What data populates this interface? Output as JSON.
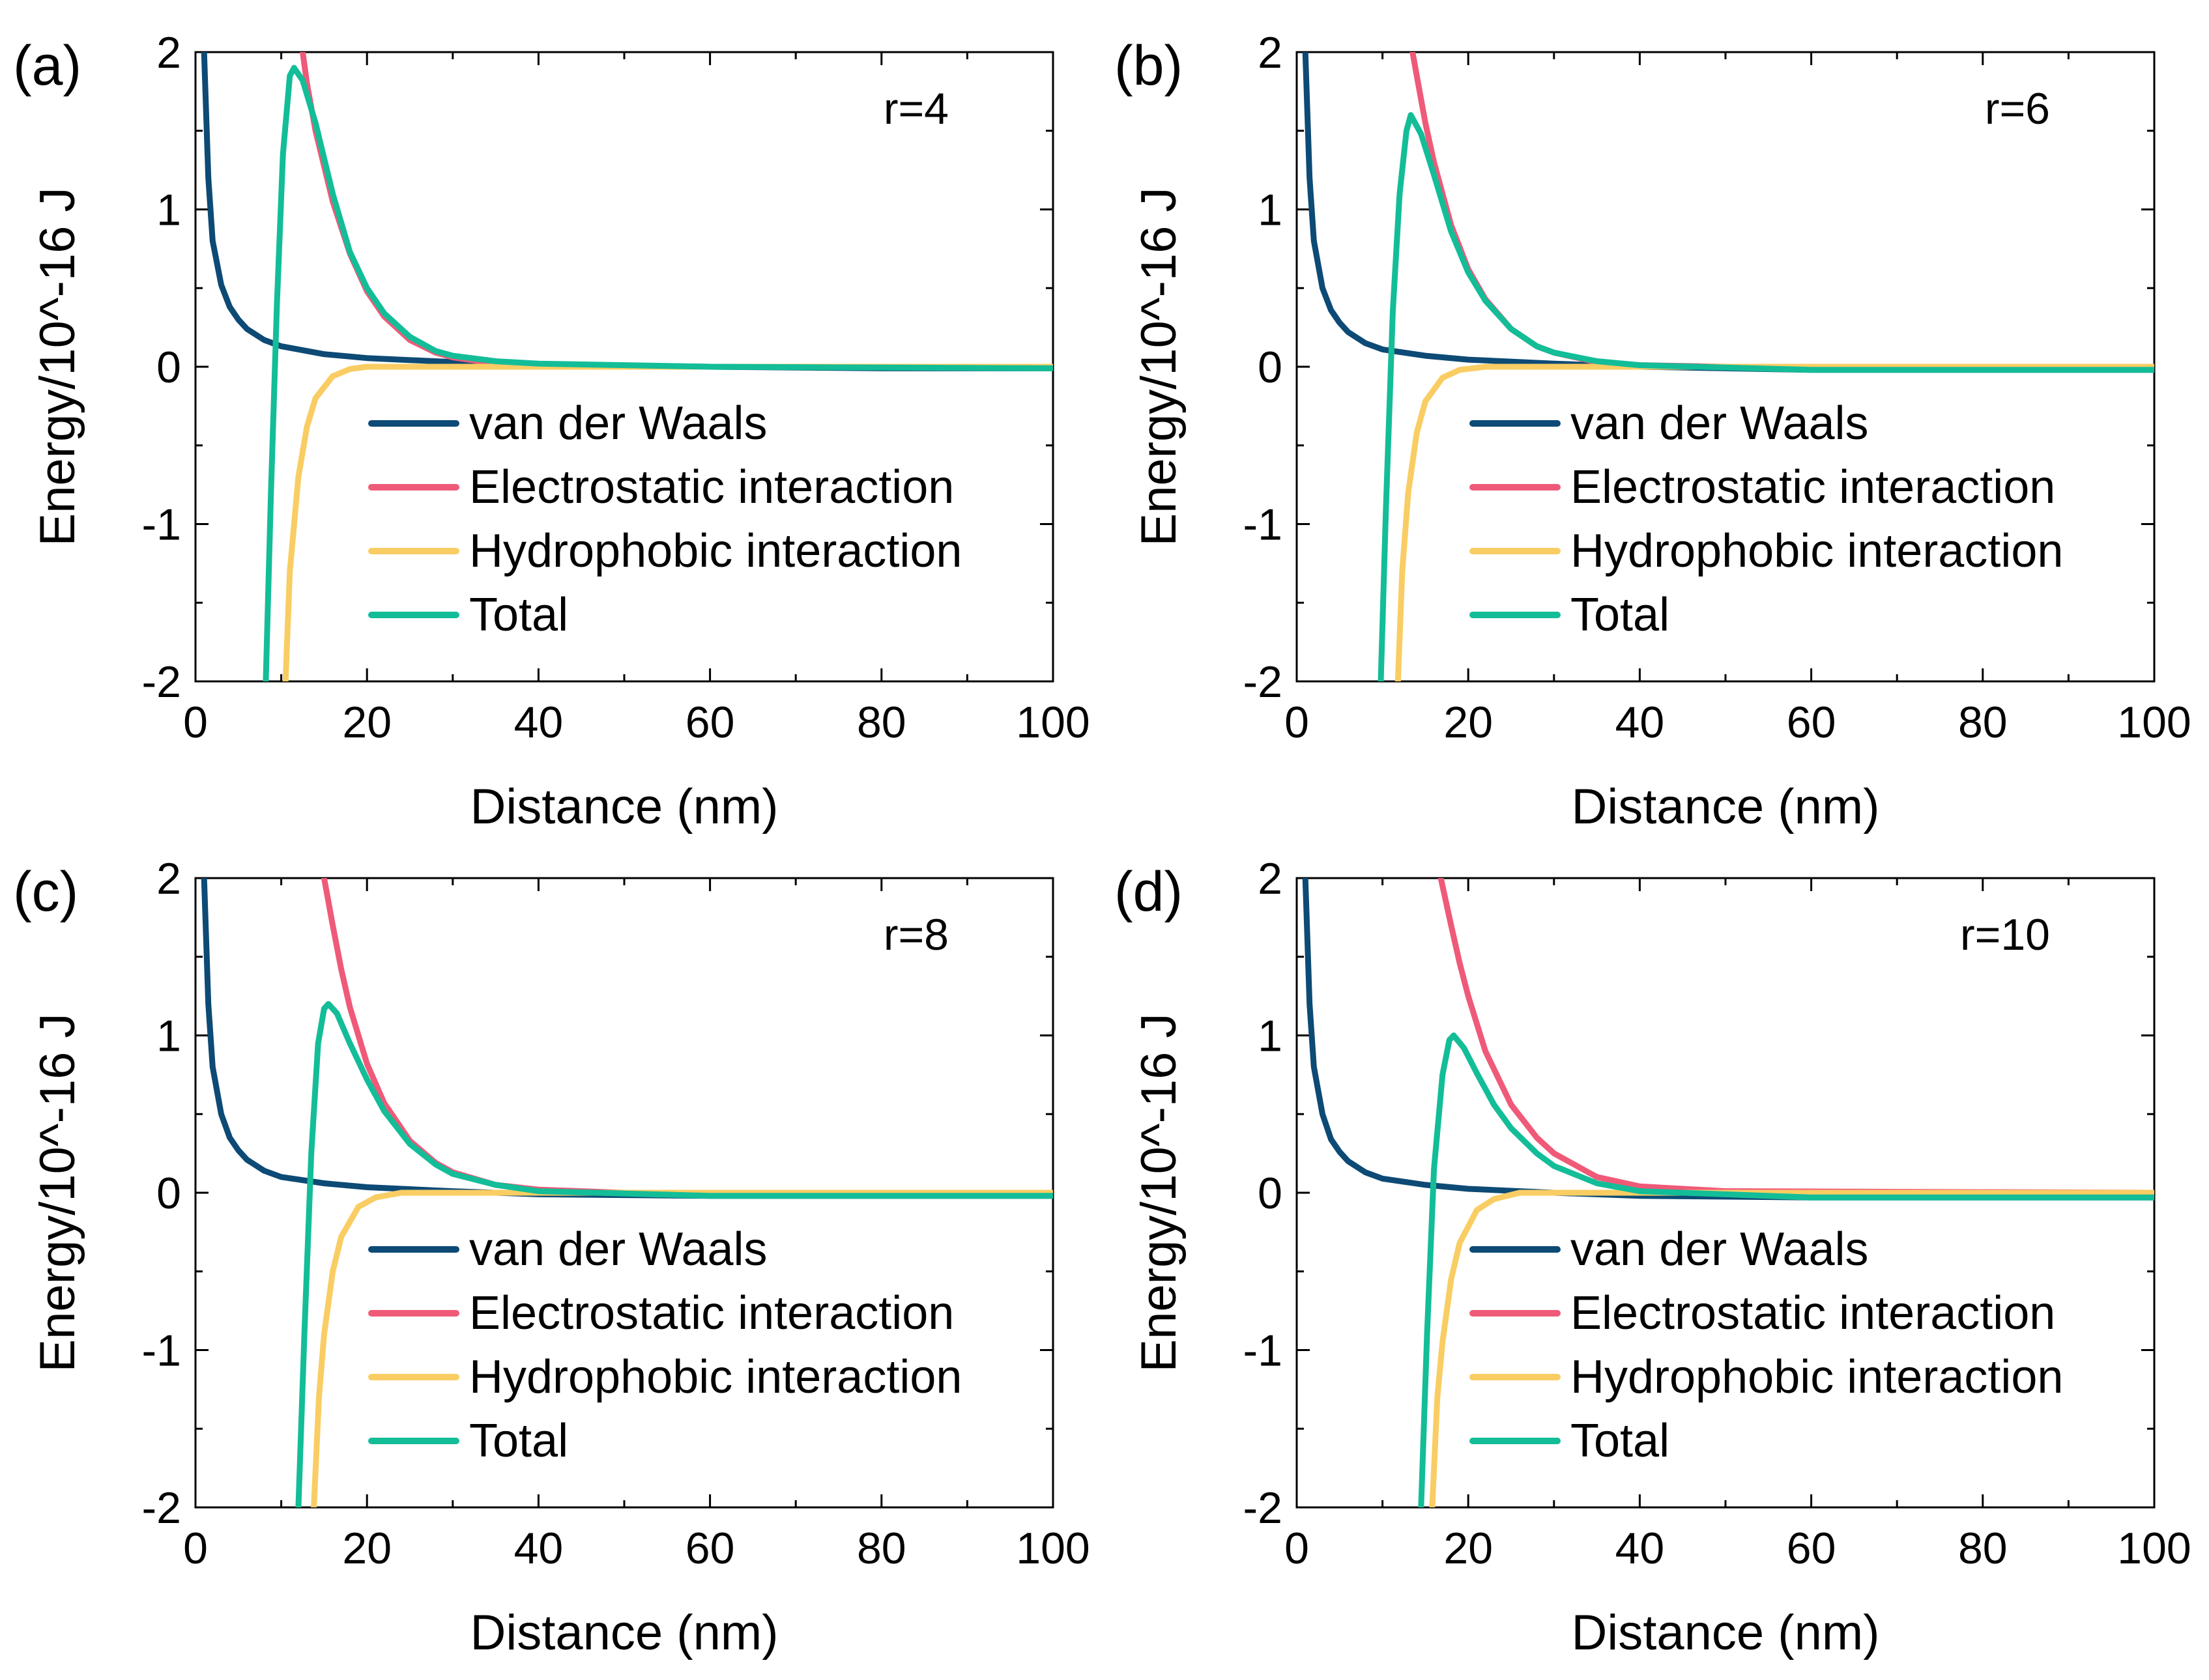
{
  "chart_data": [
    {
      "panel": "(a)",
      "type": "line",
      "annotation": "r=4",
      "xlabel": "Distance (nm)",
      "ylabel": "Energy/10^-16 J",
      "xlim": [
        0,
        100
      ],
      "ylim": [
        -2,
        2
      ],
      "xticks": [
        "0",
        "20",
        "40",
        "60",
        "80",
        "100"
      ],
      "yticks": [
        "-2",
        "-1",
        "0",
        "1",
        "2"
      ],
      "legend_position": "center-right",
      "series": [
        {
          "name": "van der Waals",
          "color": "#0d4a75",
          "points": [
            [
              1,
              2.0
            ],
            [
              1.5,
              1.2
            ],
            [
              2,
              0.8
            ],
            [
              3,
              0.52
            ],
            [
              4,
              0.38
            ],
            [
              5,
              0.3
            ],
            [
              6,
              0.24
            ],
            [
              8,
              0.17
            ],
            [
              10,
              0.13
            ],
            [
              15,
              0.08
            ],
            [
              20,
              0.055
            ],
            [
              30,
              0.03
            ],
            [
              40,
              0.015
            ],
            [
              60,
              0.0
            ],
            [
              80,
              -0.01
            ],
            [
              100,
              -0.01
            ]
          ]
        },
        {
          "name": "Electrostatic interaction",
          "color": "#ef5a78",
          "points": [
            [
              12.5,
              2.0
            ],
            [
              13,
              1.8
            ],
            [
              14,
              1.5
            ],
            [
              16,
              1.05
            ],
            [
              18,
              0.72
            ],
            [
              20,
              0.48
            ],
            [
              22,
              0.32
            ],
            [
              25,
              0.17
            ],
            [
              28,
              0.09
            ],
            [
              30,
              0.06
            ],
            [
              35,
              0.02
            ],
            [
              40,
              0.01
            ],
            [
              50,
              0.0
            ],
            [
              100,
              0.0
            ]
          ]
        },
        {
          "name": "Hydrophobic interaction",
          "color": "#f9cd63",
          "points": [
            [
              10.5,
              -2.0
            ],
            [
              11,
              -1.3
            ],
            [
              12,
              -0.7
            ],
            [
              13,
              -0.38
            ],
            [
              14,
              -0.2
            ],
            [
              16,
              -0.06
            ],
            [
              18,
              -0.015
            ],
            [
              20,
              0.0
            ],
            [
              100,
              0.0
            ]
          ]
        },
        {
          "name": "Total",
          "color": "#13bd98",
          "points": [
            [
              8.2,
              -2.0
            ],
            [
              8.8,
              -0.8
            ],
            [
              9.5,
              0.4
            ],
            [
              10.2,
              1.35
            ],
            [
              11,
              1.85
            ],
            [
              11.5,
              1.9
            ],
            [
              12.5,
              1.82
            ],
            [
              14,
              1.55
            ],
            [
              16,
              1.1
            ],
            [
              18,
              0.73
            ],
            [
              20,
              0.5
            ],
            [
              22,
              0.34
            ],
            [
              25,
              0.19
            ],
            [
              28,
              0.1
            ],
            [
              30,
              0.07
            ],
            [
              35,
              0.035
            ],
            [
              40,
              0.02
            ],
            [
              60,
              0.0
            ],
            [
              100,
              -0.01
            ]
          ]
        }
      ]
    },
    {
      "panel": "(b)",
      "type": "line",
      "annotation": "r=6",
      "xlabel": "Distance (nm)",
      "ylabel": "Energy/10^-16 J",
      "xlim": [
        0,
        100
      ],
      "ylim": [
        -2,
        2
      ],
      "xticks": [
        "0",
        "20",
        "40",
        "60",
        "80",
        "100"
      ],
      "yticks": [
        "-2",
        "-1",
        "0",
        "1",
        "2"
      ],
      "legend_position": "center-right",
      "series": [
        {
          "name": "van der Waals",
          "color": "#0d4a75",
          "points": [
            [
              1,
              2.0
            ],
            [
              1.5,
              1.2
            ],
            [
              2,
              0.8
            ],
            [
              3,
              0.5
            ],
            [
              4,
              0.36
            ],
            [
              5,
              0.28
            ],
            [
              6,
              0.22
            ],
            [
              8,
              0.15
            ],
            [
              10,
              0.11
            ],
            [
              15,
              0.07
            ],
            [
              20,
              0.045
            ],
            [
              30,
              0.02
            ],
            [
              40,
              0.0
            ],
            [
              60,
              -0.02
            ],
            [
              80,
              -0.02
            ],
            [
              100,
              -0.02
            ]
          ]
        },
        {
          "name": "Electrostatic interaction",
          "color": "#ef5a78",
          "points": [
            [
              13.5,
              2.0
            ],
            [
              14,
              1.85
            ],
            [
              15,
              1.55
            ],
            [
              16,
              1.3
            ],
            [
              18,
              0.9
            ],
            [
              20,
              0.62
            ],
            [
              22,
              0.43
            ],
            [
              25,
              0.24
            ],
            [
              28,
              0.13
            ],
            [
              30,
              0.09
            ],
            [
              35,
              0.03
            ],
            [
              40,
              0.01
            ],
            [
              50,
              0.0
            ],
            [
              100,
              0.0
            ]
          ]
        },
        {
          "name": "Hydrophobic interaction",
          "color": "#f9cd63",
          "points": [
            [
              11.8,
              -2.0
            ],
            [
              12.3,
              -1.3
            ],
            [
              13,
              -0.8
            ],
            [
              14,
              -0.42
            ],
            [
              15,
              -0.22
            ],
            [
              17,
              -0.07
            ],
            [
              19,
              -0.02
            ],
            [
              22,
              0.0
            ],
            [
              100,
              0.0
            ]
          ]
        },
        {
          "name": "Total",
          "color": "#13bd98",
          "points": [
            [
              9.8,
              -2.0
            ],
            [
              10.4,
              -0.9
            ],
            [
              11.2,
              0.35
            ],
            [
              12,
              1.1
            ],
            [
              12.8,
              1.5
            ],
            [
              13.3,
              1.6
            ],
            [
              14.5,
              1.48
            ],
            [
              16,
              1.22
            ],
            [
              18,
              0.86
            ],
            [
              20,
              0.6
            ],
            [
              22,
              0.42
            ],
            [
              25,
              0.24
            ],
            [
              28,
              0.13
            ],
            [
              30,
              0.09
            ],
            [
              35,
              0.035
            ],
            [
              40,
              0.01
            ],
            [
              60,
              -0.02
            ],
            [
              100,
              -0.02
            ]
          ]
        }
      ]
    },
    {
      "panel": "(c)",
      "type": "line",
      "annotation": "r=8",
      "xlabel": "Distance (nm)",
      "ylabel": "Energy/10^-16 J",
      "xlim": [
        0,
        100
      ],
      "ylim": [
        -2,
        2
      ],
      "xticks": [
        "0",
        "20",
        "40",
        "60",
        "80",
        "100"
      ],
      "yticks": [
        "-2",
        "-1",
        "0",
        "1",
        "2"
      ],
      "legend_position": "center-right",
      "series": [
        {
          "name": "van der Waals",
          "color": "#0d4a75",
          "points": [
            [
              1,
              2.0
            ],
            [
              1.5,
              1.2
            ],
            [
              2,
              0.8
            ],
            [
              3,
              0.5
            ],
            [
              4,
              0.35
            ],
            [
              5,
              0.27
            ],
            [
              6,
              0.21
            ],
            [
              8,
              0.14
            ],
            [
              10,
              0.1
            ],
            [
              15,
              0.06
            ],
            [
              20,
              0.035
            ],
            [
              30,
              0.01
            ],
            [
              40,
              -0.01
            ],
            [
              60,
              -0.02
            ],
            [
              80,
              -0.02
            ],
            [
              100,
              -0.02
            ]
          ]
        },
        {
          "name": "Electrostatic interaction",
          "color": "#ef5a78",
          "points": [
            [
              15,
              2.0
            ],
            [
              16,
              1.7
            ],
            [
              17,
              1.42
            ],
            [
              18,
              1.18
            ],
            [
              20,
              0.82
            ],
            [
              22,
              0.57
            ],
            [
              25,
              0.33
            ],
            [
              28,
              0.19
            ],
            [
              30,
              0.13
            ],
            [
              35,
              0.05
            ],
            [
              40,
              0.02
            ],
            [
              50,
              0.0
            ],
            [
              100,
              0.0
            ]
          ]
        },
        {
          "name": "Hydrophobic interaction",
          "color": "#f9cd63",
          "points": [
            [
              13.8,
              -2.0
            ],
            [
              14.4,
              -1.3
            ],
            [
              15,
              -0.9
            ],
            [
              16,
              -0.5
            ],
            [
              17,
              -0.28
            ],
            [
              19,
              -0.09
            ],
            [
              21,
              -0.03
            ],
            [
              24,
              0.0
            ],
            [
              100,
              0.0
            ]
          ]
        },
        {
          "name": "Total",
          "color": "#13bd98",
          "points": [
            [
              12,
              -2.0
            ],
            [
              12.7,
              -0.9
            ],
            [
              13.5,
              0.25
            ],
            [
              14.3,
              0.95
            ],
            [
              15,
              1.17
            ],
            [
              15.5,
              1.2
            ],
            [
              16.5,
              1.14
            ],
            [
              18,
              0.95
            ],
            [
              20,
              0.72
            ],
            [
              22,
              0.52
            ],
            [
              25,
              0.31
            ],
            [
              28,
              0.18
            ],
            [
              30,
              0.12
            ],
            [
              35,
              0.05
            ],
            [
              40,
              0.01
            ],
            [
              60,
              -0.02
            ],
            [
              100,
              -0.02
            ]
          ]
        }
      ]
    },
    {
      "panel": "(d)",
      "type": "line",
      "annotation": "r=10",
      "xlabel": "Distance (nm)",
      "ylabel": "Energy/10^-16 J",
      "xlim": [
        0,
        100
      ],
      "ylim": [
        -2,
        2
      ],
      "xticks": [
        "0",
        "20",
        "40",
        "60",
        "80",
        "100"
      ],
      "yticks": [
        "-2",
        "-1",
        "0",
        "1",
        "2"
      ],
      "legend_position": "center-right",
      "series": [
        {
          "name": "van der Waals",
          "color": "#0d4a75",
          "points": [
            [
              1,
              2.0
            ],
            [
              1.5,
              1.2
            ],
            [
              2,
              0.8
            ],
            [
              3,
              0.5
            ],
            [
              4,
              0.34
            ],
            [
              5,
              0.26
            ],
            [
              6,
              0.2
            ],
            [
              8,
              0.13
            ],
            [
              10,
              0.09
            ],
            [
              15,
              0.05
            ],
            [
              20,
              0.025
            ],
            [
              30,
              0.0
            ],
            [
              40,
              -0.02
            ],
            [
              60,
              -0.03
            ],
            [
              80,
              -0.03
            ],
            [
              100,
              -0.03
            ]
          ]
        },
        {
          "name": "Electrostatic interaction",
          "color": "#ef5a78",
          "points": [
            [
              16.8,
              2.0
            ],
            [
              18,
              1.7
            ],
            [
              19,
              1.46
            ],
            [
              20,
              1.25
            ],
            [
              22,
              0.9
            ],
            [
              25,
              0.56
            ],
            [
              28,
              0.35
            ],
            [
              30,
              0.25
            ],
            [
              35,
              0.1
            ],
            [
              40,
              0.04
            ],
            [
              50,
              0.01
            ],
            [
              100,
              0.0
            ]
          ]
        },
        {
          "name": "Hydrophobic interaction",
          "color": "#f9cd63",
          "points": [
            [
              15.8,
              -2.0
            ],
            [
              16.4,
              -1.3
            ],
            [
              17,
              -0.95
            ],
            [
              18,
              -0.55
            ],
            [
              19,
              -0.32
            ],
            [
              21,
              -0.11
            ],
            [
              23,
              -0.04
            ],
            [
              26,
              0.0
            ],
            [
              100,
              0.0
            ]
          ]
        },
        {
          "name": "Total",
          "color": "#13bd98",
          "points": [
            [
              14.5,
              -2.0
            ],
            [
              15.2,
              -0.9
            ],
            [
              16,
              0.15
            ],
            [
              17,
              0.75
            ],
            [
              17.8,
              0.97
            ],
            [
              18.3,
              1.0
            ],
            [
              19.5,
              0.92
            ],
            [
              21,
              0.76
            ],
            [
              23,
              0.56
            ],
            [
              25,
              0.41
            ],
            [
              28,
              0.25
            ],
            [
              30,
              0.17
            ],
            [
              35,
              0.06
            ],
            [
              40,
              0.01
            ],
            [
              60,
              -0.03
            ],
            [
              100,
              -0.03
            ]
          ]
        }
      ]
    }
  ]
}
